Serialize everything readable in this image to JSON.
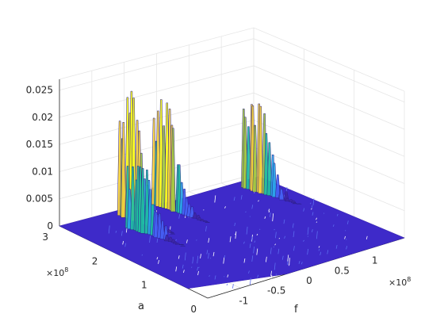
{
  "chart_data": {
    "type": "surface",
    "xlabel": "f",
    "ylabel": "a",
    "zlabel": "",
    "x_multiplier": "×10",
    "x_multiplier_exp": "8",
    "y_multiplier": "×10",
    "y_multiplier_exp": "8",
    "xlim": [
      -1.5,
      1.5
    ],
    "ylim": [
      0,
      3
    ],
    "zlim": [
      0,
      0.027
    ],
    "x_ticks": [
      "-1",
      "-0.5",
      "0",
      "0.5",
      "1"
    ],
    "x_tick_values": [
      -1,
      -0.5,
      0,
      0.5,
      1
    ],
    "y_ticks": [
      "0",
      "1",
      "2",
      "3"
    ],
    "y_tick_values": [
      0,
      1,
      2,
      3
    ],
    "z_ticks": [
      "0",
      "0.005",
      "0.01",
      "0.015",
      "0.02",
      "0.025"
    ],
    "z_tick_values": [
      0,
      0.005,
      0.01,
      0.015,
      0.02,
      0.025
    ],
    "grid": true,
    "colormap": [
      "#3e26a8",
      "#4561f5",
      "#2ba5e9",
      "#1ebda2",
      "#a2c840",
      "#f5d13a",
      "#f9fb15"
    ],
    "peaks": [
      {
        "f": -0.62,
        "a": 2.85,
        "height": 0.0265
      },
      {
        "f": -0.78,
        "a": 2.45,
        "height": 0.0158
      },
      {
        "f": -0.05,
        "a": 2.9,
        "height": 0.0222
      },
      {
        "f": 1.18,
        "a": 2.7,
        "height": 0.0205
      }
    ]
  }
}
